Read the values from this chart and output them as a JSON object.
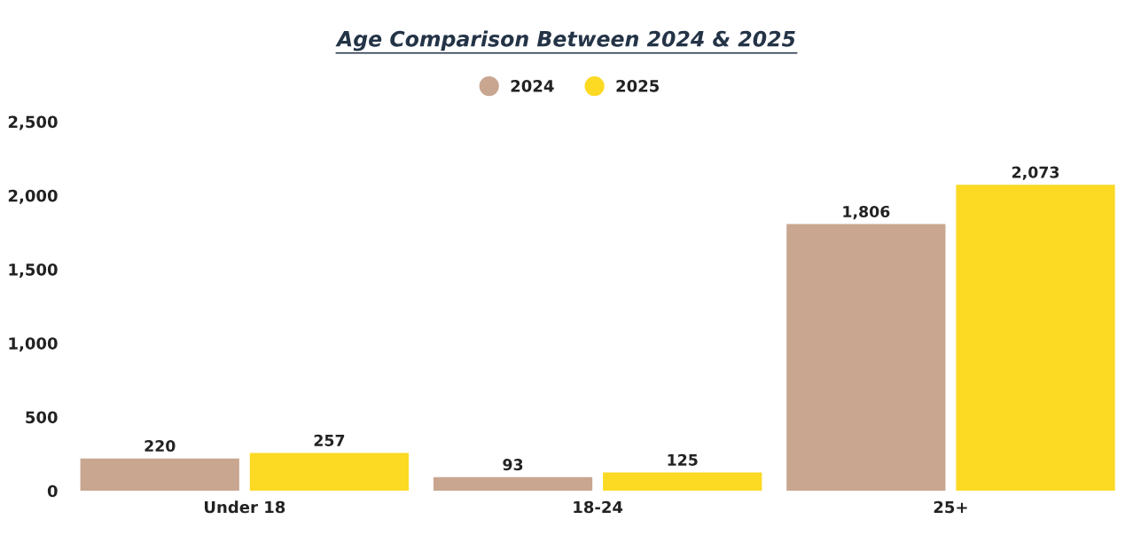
{
  "chart_data": {
    "type": "bar",
    "title": "Age Comparison Between 2024 & 2025",
    "categories": [
      "Under 18",
      "18-24",
      "25+"
    ],
    "series": [
      {
        "name": "2024",
        "color": "#c8a690",
        "values": [
          220,
          93,
          1806
        ],
        "value_labels": [
          "220",
          "93",
          "1,806"
        ]
      },
      {
        "name": "2025",
        "color": "#fcd923",
        "values": [
          257,
          125,
          2073
        ],
        "value_labels": [
          "257",
          "125",
          "2,073"
        ]
      }
    ],
    "ylim": [
      0,
      2500
    ],
    "yticks": [
      {
        "value": 0,
        "label": "0"
      },
      {
        "value": 500,
        "label": "500"
      },
      {
        "value": 1000,
        "label": "1,000"
      },
      {
        "value": 1500,
        "label": "1,500"
      },
      {
        "value": 2000,
        "label": "2,000"
      },
      {
        "value": 2500,
        "label": "2,500"
      }
    ],
    "legend": "top",
    "grid": false,
    "marker": "circle"
  }
}
